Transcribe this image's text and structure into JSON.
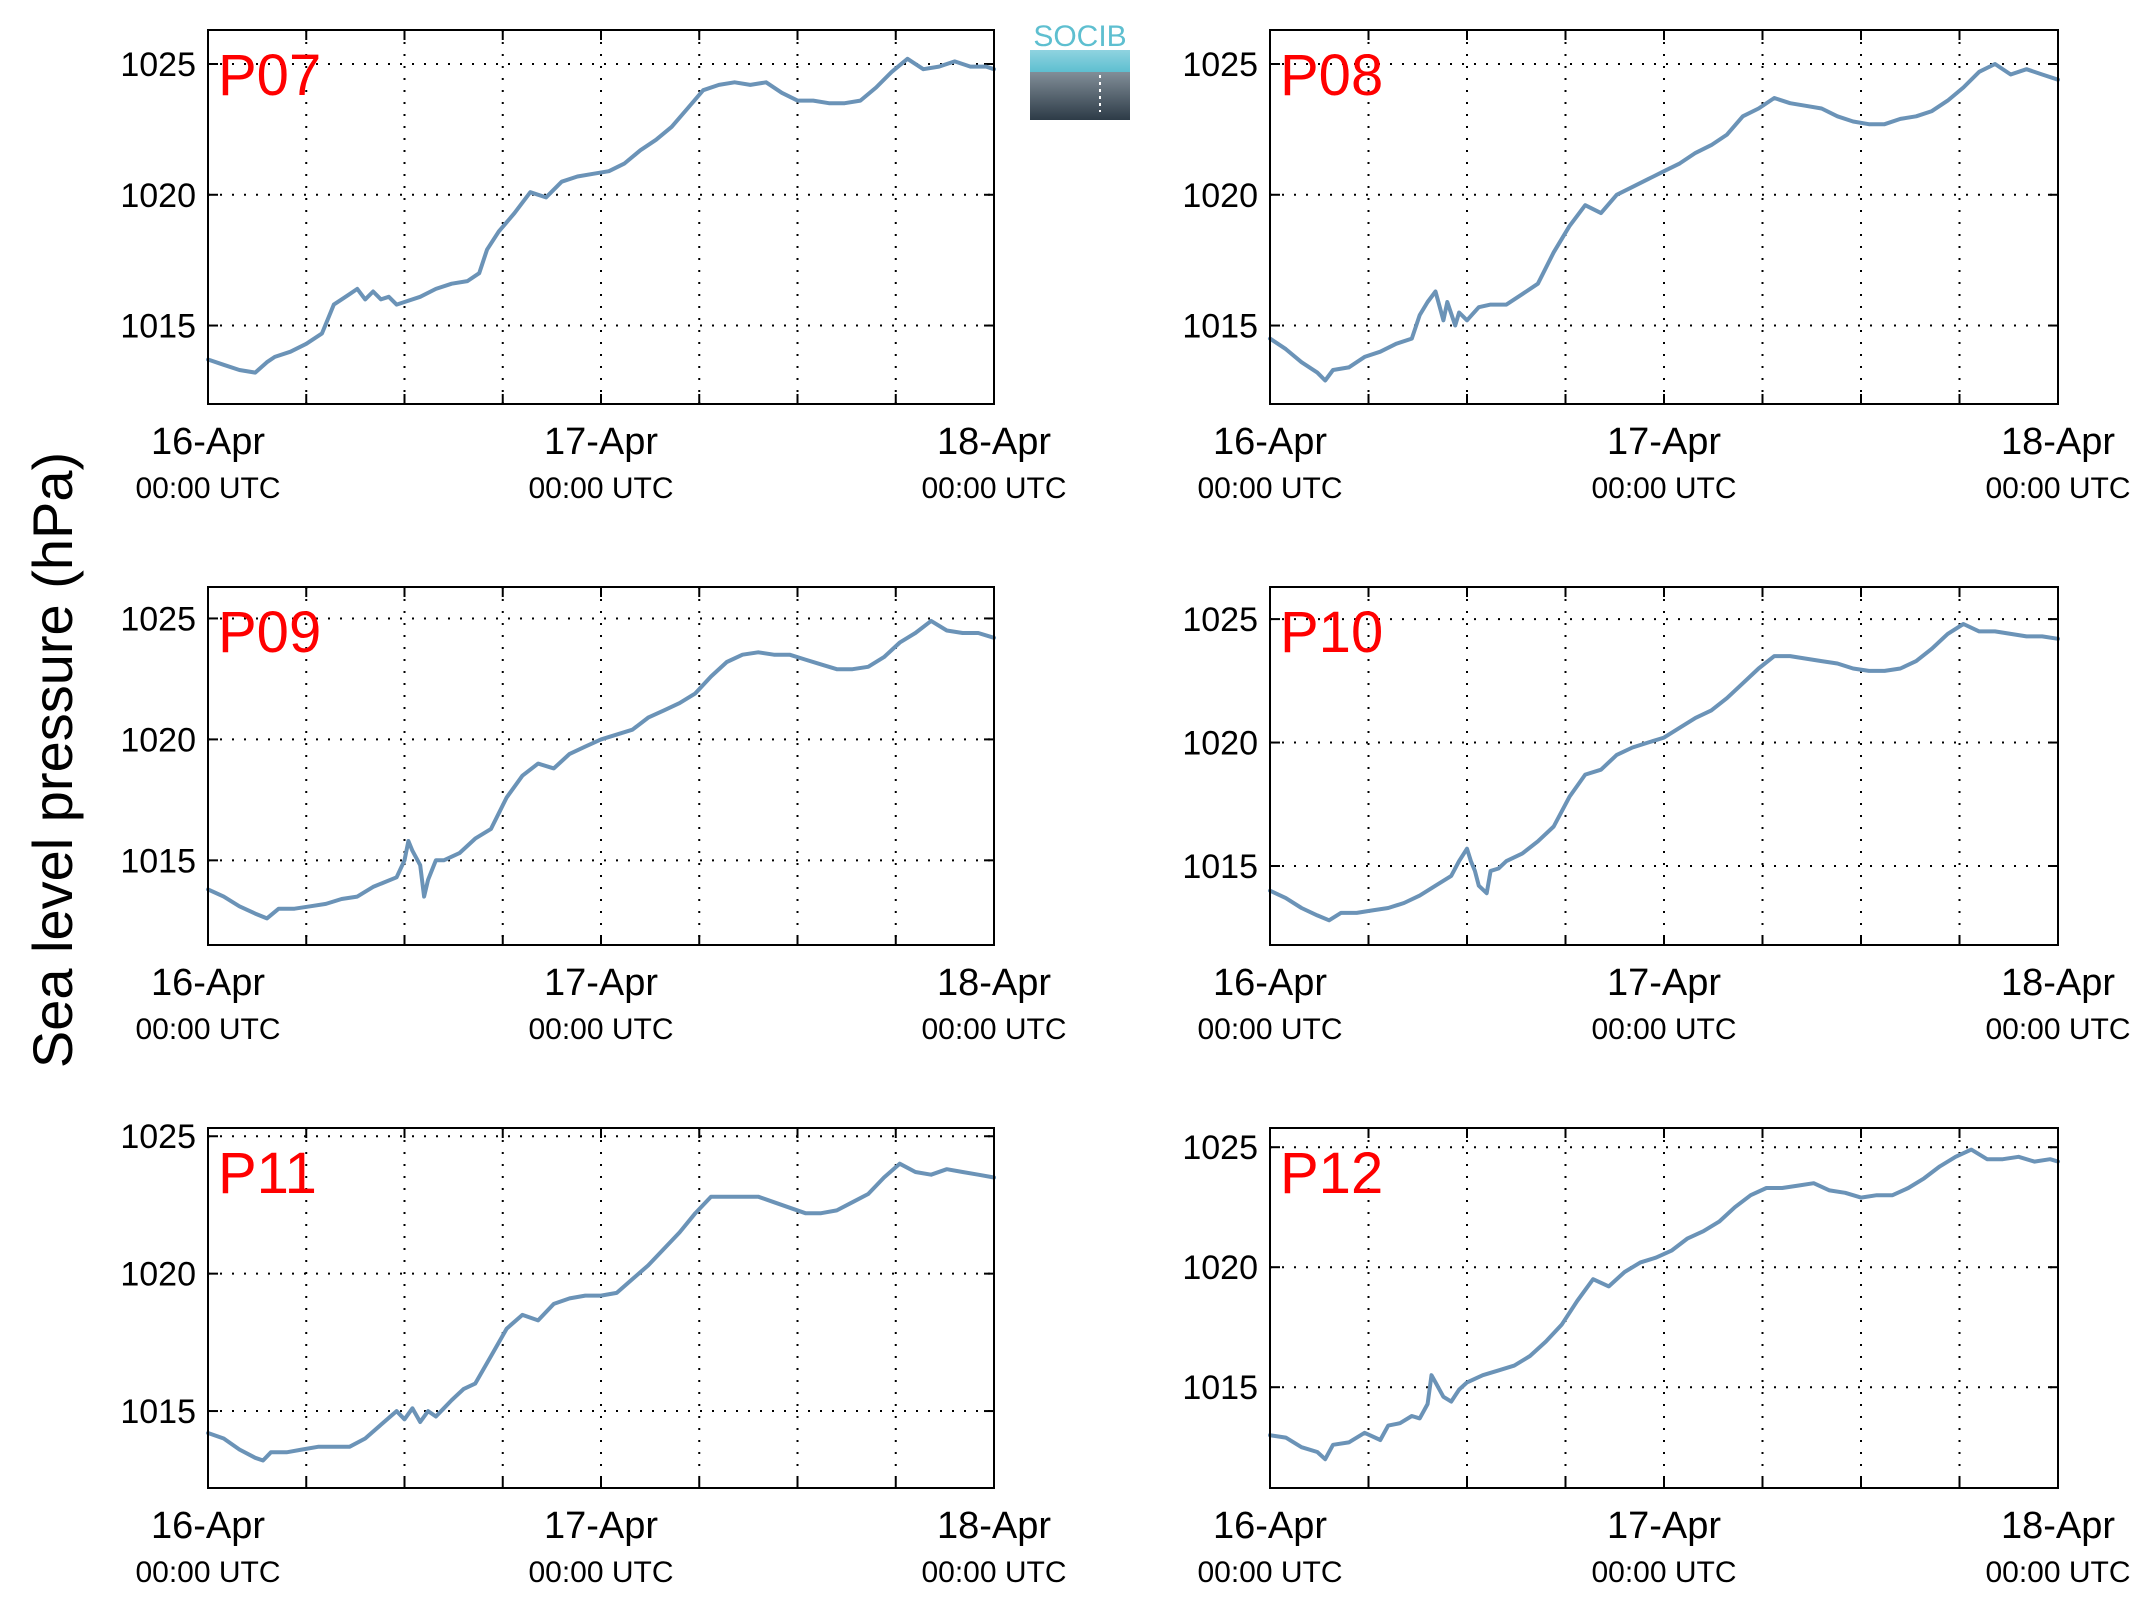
{
  "figure": {
    "ylabel": "Sea level pressure (hPa)",
    "logo_text": "SOCIB"
  },
  "colors": {
    "line": "#6b93b7",
    "panel_label": "#ff0000",
    "axis": "#000000",
    "grid": "#000000"
  },
  "chart_data": [
    {
      "type": "line",
      "panel_label": "P07",
      "x_unit": "days since 16-Apr 00:00 UTC",
      "xlim": [
        0,
        2
      ],
      "ylim": [
        1012,
        1026.3
      ],
      "yticks": [
        1015,
        1020,
        1025
      ],
      "xticks": [
        0,
        1,
        2
      ],
      "xtick_labels": [
        [
          "16-Apr",
          "00:00 UTC"
        ],
        [
          "17-Apr",
          "00:00 UTC"
        ],
        [
          "18-Apr",
          "00:00 UTC"
        ]
      ],
      "grid": true,
      "series": [
        {
          "x": [
            0.0,
            0.04,
            0.08,
            0.12,
            0.15,
            0.17,
            0.21,
            0.25,
            0.29,
            0.32,
            0.34,
            0.36,
            0.38,
            0.4,
            0.42,
            0.44,
            0.46,
            0.48,
            0.5,
            0.54,
            0.58,
            0.62,
            0.66,
            0.69,
            0.71,
            0.74,
            0.78,
            0.82,
            0.86,
            0.9,
            0.94,
            0.98,
            1.02,
            1.06,
            1.1,
            1.14,
            1.18,
            1.22,
            1.26,
            1.3,
            1.34,
            1.38,
            1.42,
            1.46,
            1.5,
            1.54,
            1.58,
            1.62,
            1.66,
            1.7,
            1.74,
            1.78,
            1.82,
            1.86,
            1.9,
            1.94,
            1.98,
            2.0
          ],
          "y": [
            1013.7,
            1013.5,
            1013.3,
            1013.2,
            1013.6,
            1013.8,
            1014.0,
            1014.3,
            1014.7,
            1015.8,
            1016.0,
            1016.2,
            1016.4,
            1016.0,
            1016.3,
            1016.0,
            1016.1,
            1015.8,
            1015.9,
            1016.1,
            1016.4,
            1016.6,
            1016.7,
            1017.0,
            1017.9,
            1018.6,
            1019.3,
            1020.1,
            1019.9,
            1020.5,
            1020.7,
            1020.8,
            1020.9,
            1021.2,
            1021.7,
            1022.1,
            1022.6,
            1023.3,
            1024.0,
            1024.2,
            1024.3,
            1024.2,
            1024.3,
            1023.9,
            1023.6,
            1023.6,
            1023.5,
            1023.5,
            1023.6,
            1024.1,
            1024.7,
            1025.2,
            1024.8,
            1024.9,
            1025.1,
            1024.9,
            1024.9,
            1024.8
          ]
        }
      ]
    },
    {
      "type": "line",
      "panel_label": "P08",
      "x_unit": "days since 16-Apr 00:00 UTC",
      "xlim": [
        0,
        2
      ],
      "ylim": [
        1012,
        1026.3
      ],
      "yticks": [
        1015,
        1020,
        1025
      ],
      "xticks": [
        0,
        1,
        2
      ],
      "xtick_labels": [
        [
          "16-Apr",
          "00:00 UTC"
        ],
        [
          "17-Apr",
          "00:00 UTC"
        ],
        [
          "18-Apr",
          "00:00 UTC"
        ]
      ],
      "grid": true,
      "series": [
        {
          "x": [
            0.0,
            0.04,
            0.08,
            0.12,
            0.14,
            0.16,
            0.2,
            0.24,
            0.28,
            0.32,
            0.36,
            0.38,
            0.4,
            0.42,
            0.44,
            0.45,
            0.47,
            0.48,
            0.5,
            0.53,
            0.56,
            0.6,
            0.64,
            0.68,
            0.72,
            0.76,
            0.8,
            0.84,
            0.88,
            0.92,
            0.96,
            1.0,
            1.04,
            1.08,
            1.12,
            1.16,
            1.2,
            1.24,
            1.28,
            1.32,
            1.36,
            1.4,
            1.44,
            1.48,
            1.52,
            1.56,
            1.6,
            1.64,
            1.68,
            1.72,
            1.76,
            1.8,
            1.84,
            1.88,
            1.92,
            1.96,
            2.0
          ],
          "y": [
            1014.5,
            1014.1,
            1013.6,
            1013.2,
            1012.9,
            1013.3,
            1013.4,
            1013.8,
            1014.0,
            1014.3,
            1014.5,
            1015.4,
            1015.9,
            1016.3,
            1015.2,
            1015.9,
            1015.0,
            1015.5,
            1015.2,
            1015.7,
            1015.8,
            1015.8,
            1016.2,
            1016.6,
            1017.8,
            1018.8,
            1019.6,
            1019.3,
            1020.0,
            1020.3,
            1020.6,
            1020.9,
            1021.2,
            1021.6,
            1021.9,
            1022.3,
            1023.0,
            1023.3,
            1023.7,
            1023.5,
            1023.4,
            1023.3,
            1023.0,
            1022.8,
            1022.7,
            1022.7,
            1022.9,
            1023.0,
            1023.2,
            1023.6,
            1024.1,
            1024.7,
            1025.0,
            1024.6,
            1024.8,
            1024.6,
            1024.4
          ]
        }
      ]
    },
    {
      "type": "line",
      "panel_label": "P09",
      "x_unit": "days since 16-Apr 00:00 UTC",
      "xlim": [
        0,
        2
      ],
      "ylim": [
        1011.5,
        1026.3
      ],
      "yticks": [
        1015,
        1020,
        1025
      ],
      "xticks": [
        0,
        1,
        2
      ],
      "xtick_labels": [
        [
          "16-Apr",
          "00:00 UTC"
        ],
        [
          "17-Apr",
          "00:00 UTC"
        ],
        [
          "18-Apr",
          "00:00 UTC"
        ]
      ],
      "grid": true,
      "series": [
        {
          "x": [
            0.0,
            0.04,
            0.08,
            0.12,
            0.15,
            0.18,
            0.22,
            0.26,
            0.3,
            0.34,
            0.38,
            0.42,
            0.48,
            0.5,
            0.51,
            0.52,
            0.54,
            0.55,
            0.56,
            0.58,
            0.6,
            0.64,
            0.68,
            0.72,
            0.76,
            0.8,
            0.84,
            0.88,
            0.92,
            0.96,
            1.0,
            1.04,
            1.08,
            1.12,
            1.16,
            1.2,
            1.24,
            1.28,
            1.32,
            1.36,
            1.4,
            1.44,
            1.48,
            1.52,
            1.56,
            1.6,
            1.64,
            1.68,
            1.72,
            1.76,
            1.8,
            1.84,
            1.88,
            1.92,
            1.96,
            2.0
          ],
          "y": [
            1013.8,
            1013.5,
            1013.1,
            1012.8,
            1012.6,
            1013.0,
            1013.0,
            1013.1,
            1013.2,
            1013.4,
            1013.5,
            1013.9,
            1014.3,
            1015.0,
            1015.8,
            1015.4,
            1014.8,
            1013.5,
            1014.2,
            1015.0,
            1015.0,
            1015.3,
            1015.9,
            1016.3,
            1017.6,
            1018.5,
            1019.0,
            1018.8,
            1019.4,
            1019.7,
            1020.0,
            1020.2,
            1020.4,
            1020.9,
            1021.2,
            1021.5,
            1021.9,
            1022.6,
            1023.2,
            1023.5,
            1023.6,
            1023.5,
            1023.5,
            1023.3,
            1023.1,
            1022.9,
            1022.9,
            1023.0,
            1023.4,
            1024.0,
            1024.4,
            1024.9,
            1024.5,
            1024.4,
            1024.4,
            1024.2
          ]
        }
      ]
    },
    {
      "type": "line",
      "panel_label": "P10",
      "x_unit": "days since 16-Apr 00:00 UTC",
      "xlim": [
        0,
        2
      ],
      "ylim": [
        1011.8,
        1026.3
      ],
      "yticks": [
        1015,
        1020,
        1025
      ],
      "xticks": [
        0,
        1,
        2
      ],
      "xtick_labels": [
        [
          "16-Apr",
          "00:00 UTC"
        ],
        [
          "17-Apr",
          "00:00 UTC"
        ],
        [
          "18-Apr",
          "00:00 UTC"
        ]
      ],
      "grid": true,
      "series": [
        {
          "x": [
            0.0,
            0.04,
            0.08,
            0.12,
            0.15,
            0.18,
            0.22,
            0.26,
            0.3,
            0.34,
            0.38,
            0.42,
            0.46,
            0.48,
            0.5,
            0.51,
            0.52,
            0.53,
            0.55,
            0.56,
            0.58,
            0.6,
            0.64,
            0.68,
            0.72,
            0.76,
            0.8,
            0.84,
            0.88,
            0.92,
            0.96,
            1.0,
            1.04,
            1.08,
            1.12,
            1.16,
            1.2,
            1.24,
            1.28,
            1.32,
            1.36,
            1.4,
            1.44,
            1.48,
            1.52,
            1.56,
            1.6,
            1.64,
            1.68,
            1.72,
            1.76,
            1.8,
            1.84,
            1.88,
            1.92,
            1.96,
            2.0
          ],
          "y": [
            1014.0,
            1013.7,
            1013.3,
            1013.0,
            1012.8,
            1013.1,
            1013.1,
            1013.2,
            1013.3,
            1013.5,
            1013.8,
            1014.2,
            1014.6,
            1015.2,
            1015.7,
            1015.2,
            1014.8,
            1014.2,
            1013.9,
            1014.8,
            1014.9,
            1015.2,
            1015.5,
            1016.0,
            1016.6,
            1017.8,
            1018.7,
            1018.9,
            1019.5,
            1019.8,
            1020.0,
            1020.2,
            1020.6,
            1021.0,
            1021.3,
            1021.8,
            1022.4,
            1023.0,
            1023.5,
            1023.5,
            1023.4,
            1023.3,
            1023.2,
            1023.0,
            1022.9,
            1022.9,
            1023.0,
            1023.3,
            1023.8,
            1024.4,
            1024.8,
            1024.5,
            1024.5,
            1024.4,
            1024.3,
            1024.3,
            1024.2
          ]
        }
      ]
    },
    {
      "type": "line",
      "panel_label": "P11",
      "x_unit": "days since 16-Apr 00:00 UTC",
      "xlim": [
        0,
        2
      ],
      "ylim": [
        1012.2,
        1025.3
      ],
      "yticks": [
        1015,
        1020,
        1025
      ],
      "xticks": [
        0,
        1,
        2
      ],
      "xtick_labels": [
        [
          "16-Apr",
          "00:00 UTC"
        ],
        [
          "17-Apr",
          "00:00 UTC"
        ],
        [
          "18-Apr",
          "00:00 UTC"
        ]
      ],
      "grid": true,
      "series": [
        {
          "x": [
            0.0,
            0.04,
            0.08,
            0.12,
            0.14,
            0.16,
            0.2,
            0.24,
            0.28,
            0.32,
            0.36,
            0.4,
            0.44,
            0.48,
            0.5,
            0.52,
            0.54,
            0.56,
            0.58,
            0.6,
            0.62,
            0.65,
            0.68,
            0.72,
            0.76,
            0.8,
            0.84,
            0.88,
            0.92,
            0.96,
            1.0,
            1.04,
            1.08,
            1.12,
            1.16,
            1.2,
            1.24,
            1.28,
            1.32,
            1.36,
            1.4,
            1.44,
            1.48,
            1.52,
            1.56,
            1.6,
            1.64,
            1.68,
            1.72,
            1.76,
            1.8,
            1.84,
            1.88,
            1.92,
            1.96,
            2.0
          ],
          "y": [
            1014.2,
            1014.0,
            1013.6,
            1013.3,
            1013.2,
            1013.5,
            1013.5,
            1013.6,
            1013.7,
            1013.7,
            1013.7,
            1014.0,
            1014.5,
            1015.0,
            1014.7,
            1015.1,
            1014.6,
            1015.0,
            1014.8,
            1015.1,
            1015.4,
            1015.8,
            1016.0,
            1017.0,
            1018.0,
            1018.5,
            1018.3,
            1018.9,
            1019.1,
            1019.2,
            1019.2,
            1019.3,
            1019.8,
            1020.3,
            1020.9,
            1021.5,
            1022.2,
            1022.8,
            1022.8,
            1022.8,
            1022.8,
            1022.6,
            1022.4,
            1022.2,
            1022.2,
            1022.3,
            1022.6,
            1022.9,
            1023.5,
            1024.0,
            1023.7,
            1023.6,
            1023.8,
            1023.7,
            1023.6,
            1023.5
          ]
        }
      ]
    },
    {
      "type": "line",
      "panel_label": "P12",
      "x_unit": "days since 16-Apr 00:00 UTC",
      "xlim": [
        0,
        2
      ],
      "ylim": [
        1010.8,
        1025.8
      ],
      "yticks": [
        1015,
        1020,
        1025
      ],
      "xticks": [
        0,
        1,
        2
      ],
      "xtick_labels": [
        [
          "16-Apr",
          "00:00 UTC"
        ],
        [
          "17-Apr",
          "00:00 UTC"
        ],
        [
          "18-Apr",
          "00:00 UTC"
        ]
      ],
      "grid": true,
      "series": [
        {
          "x": [
            0.0,
            0.04,
            0.08,
            0.12,
            0.14,
            0.16,
            0.2,
            0.24,
            0.28,
            0.3,
            0.33,
            0.36,
            0.38,
            0.4,
            0.41,
            0.42,
            0.44,
            0.46,
            0.48,
            0.5,
            0.54,
            0.58,
            0.62,
            0.66,
            0.7,
            0.74,
            0.78,
            0.82,
            0.86,
            0.9,
            0.94,
            0.98,
            1.02,
            1.06,
            1.1,
            1.14,
            1.18,
            1.22,
            1.26,
            1.3,
            1.34,
            1.38,
            1.42,
            1.46,
            1.5,
            1.54,
            1.58,
            1.62,
            1.66,
            1.7,
            1.74,
            1.78,
            1.82,
            1.86,
            1.9,
            1.94,
            1.98,
            2.0
          ],
          "y": [
            1013.0,
            1012.9,
            1012.5,
            1012.3,
            1012.0,
            1012.6,
            1012.7,
            1013.1,
            1012.8,
            1013.4,
            1013.5,
            1013.8,
            1013.7,
            1014.3,
            1015.5,
            1015.2,
            1014.6,
            1014.4,
            1014.9,
            1015.2,
            1015.5,
            1015.7,
            1015.9,
            1016.3,
            1016.9,
            1017.6,
            1018.6,
            1019.5,
            1019.2,
            1019.8,
            1020.2,
            1020.4,
            1020.7,
            1021.2,
            1021.5,
            1021.9,
            1022.5,
            1023.0,
            1023.3,
            1023.3,
            1023.4,
            1023.5,
            1023.2,
            1023.1,
            1022.9,
            1023.0,
            1023.0,
            1023.3,
            1023.7,
            1024.2,
            1024.6,
            1024.9,
            1024.5,
            1024.5,
            1024.6,
            1024.4,
            1024.5,
            1024.4
          ]
        }
      ]
    }
  ]
}
